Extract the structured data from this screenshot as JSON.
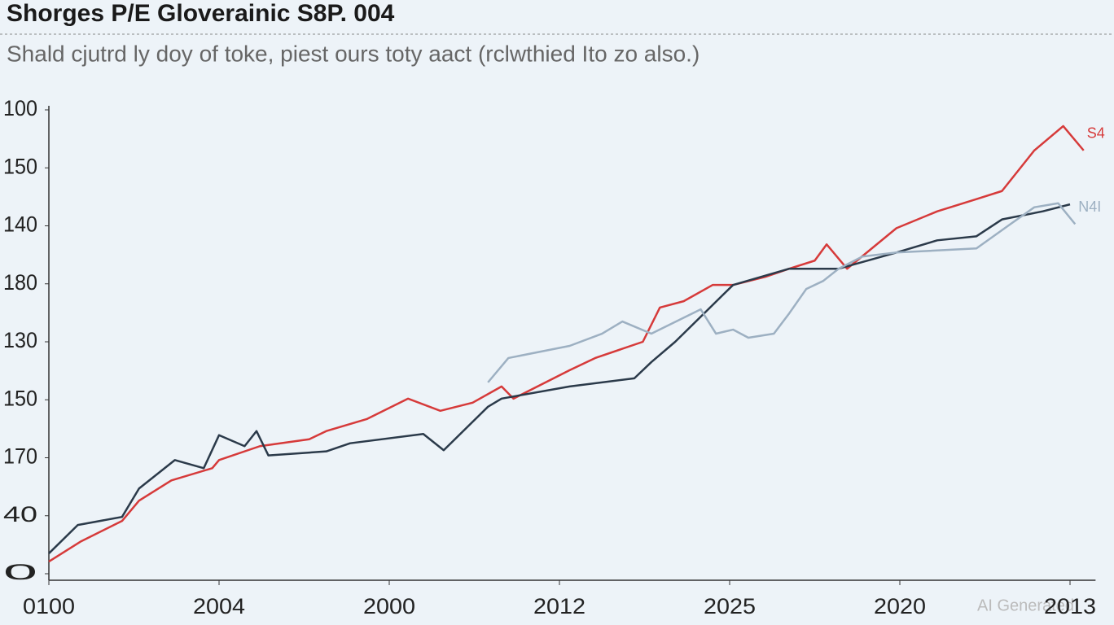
{
  "chart_data": {
    "type": "line",
    "title": "Shorges P/E Gloverainic S8P. 004",
    "subtitle": "Shald cjutrd ly doy of toke, piest ours toty aact (rclwthied Ito zo also.)",
    "watermark": "AI Generated",
    "xlim": [
      0,
      6.15
    ],
    "ylim": [
      0,
      8
    ],
    "xticks": [
      {
        "value": 0,
        "label": "0100"
      },
      {
        "value": 1,
        "label": "2004"
      },
      {
        "value": 2,
        "label": "2000"
      },
      {
        "value": 3,
        "label": "2012"
      },
      {
        "value": 4,
        "label": "2025"
      },
      {
        "value": 5,
        "label": "2020"
      },
      {
        "value": 6,
        "label": "2013"
      }
    ],
    "yticks": [
      {
        "value": 0,
        "label": "0"
      },
      {
        "value": 1,
        "label": "40"
      },
      {
        "value": 2,
        "label": "170"
      },
      {
        "value": 3,
        "label": "150"
      },
      {
        "value": 4,
        "label": "130"
      },
      {
        "value": 5,
        "label": "180"
      },
      {
        "value": 6,
        "label": "140"
      },
      {
        "value": 7,
        "label": "150"
      },
      {
        "value": 8,
        "label": "100"
      }
    ],
    "series": [
      {
        "name": "S4",
        "color": "#d63a3a",
        "x": [
          0,
          0.19,
          0.43,
          0.53,
          0.72,
          0.96,
          1.0,
          1.24,
          1.53,
          1.63,
          1.87,
          2.11,
          2.3,
          2.49,
          2.66,
          2.73,
          3.06,
          3.21,
          3.49,
          3.59,
          3.73,
          3.9,
          4.02,
          4.21,
          4.35,
          4.5,
          4.57,
          4.69,
          4.98,
          5.22,
          5.45,
          5.6,
          5.79,
          5.96,
          6.08
        ],
        "values": [
          0.21,
          0.56,
          0.91,
          1.26,
          1.61,
          1.82,
          1.96,
          2.2,
          2.32,
          2.46,
          2.67,
          3.02,
          2.81,
          2.95,
          3.23,
          3.02,
          3.51,
          3.72,
          4.0,
          4.59,
          4.7,
          4.98,
          4.98,
          5.12,
          5.26,
          5.4,
          5.68,
          5.26,
          5.96,
          6.25,
          6.46,
          6.6,
          7.3,
          7.72,
          7.3
        ]
      },
      {
        "color": "#2b3a4a",
        "x": [
          0,
          0.17,
          0.43,
          0.53,
          0.74,
          0.91,
          1.0,
          1.15,
          1.22,
          1.29,
          1.63,
          1.77,
          2.2,
          2.32,
          2.58,
          2.66,
          3.06,
          3.44,
          3.54,
          3.68,
          4.02,
          4.35,
          4.64,
          4.98,
          5.22,
          5.45,
          5.6,
          5.84,
          6.0
        ],
        "values": [
          0.35,
          0.84,
          0.98,
          1.47,
          1.96,
          1.82,
          2.39,
          2.2,
          2.46,
          2.04,
          2.11,
          2.25,
          2.41,
          2.13,
          2.88,
          3.02,
          3.23,
          3.37,
          3.65,
          4.0,
          4.98,
          5.26,
          5.26,
          5.54,
          5.75,
          5.82,
          6.11,
          6.25,
          6.37
        ]
      },
      {
        "name": "N4I",
        "color": "#9db0c2",
        "x": [
          2.58,
          2.7,
          3.06,
          3.25,
          3.37,
          3.54,
          3.83,
          3.92,
          4.02,
          4.11,
          4.26,
          4.35,
          4.45,
          4.55,
          4.64,
          4.78,
          4.98,
          5.45,
          5.65,
          5.79,
          5.93,
          6.03
        ],
        "values": [
          3.3,
          3.72,
          3.93,
          4.14,
          4.35,
          4.14,
          4.56,
          4.14,
          4.21,
          4.07,
          4.14,
          4.49,
          4.91,
          5.05,
          5.26,
          5.47,
          5.54,
          5.61,
          6.03,
          6.32,
          6.39,
          6.03
        ]
      }
    ]
  }
}
